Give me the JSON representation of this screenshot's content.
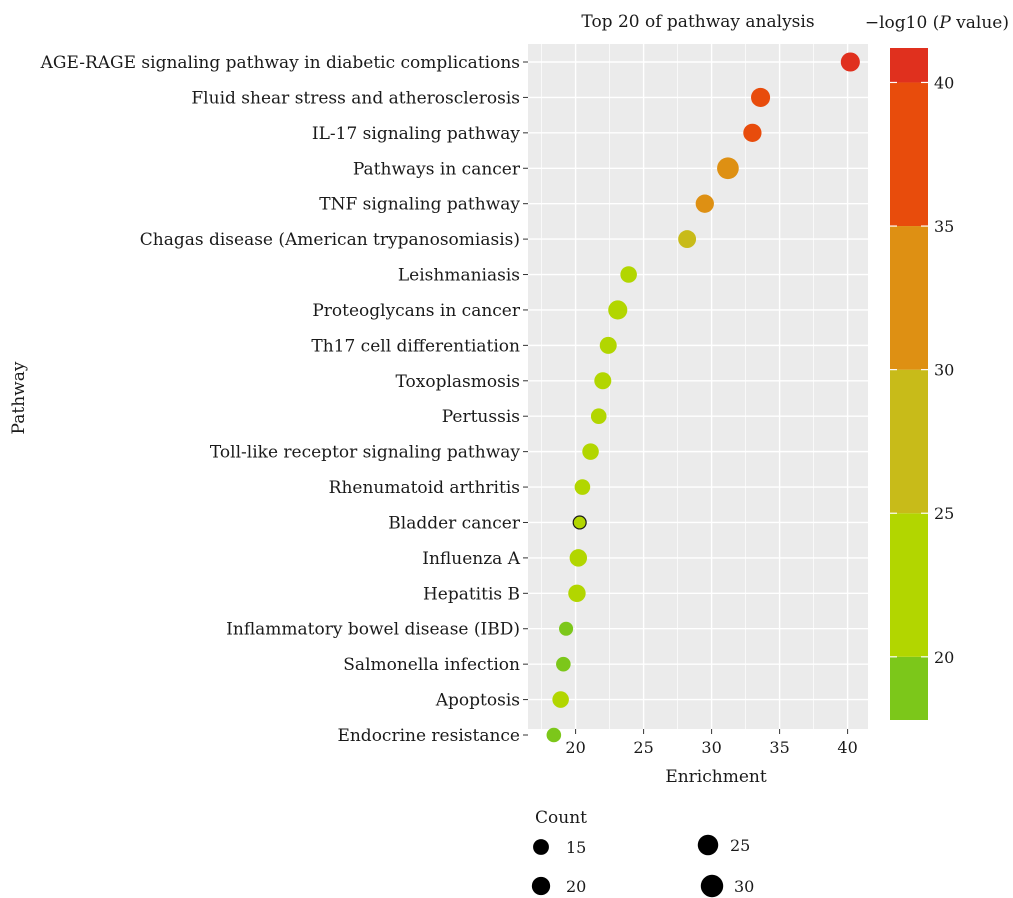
{
  "chart_data": {
    "type": "scatter",
    "title": "Top 20 of pathway analysis",
    "xlabel": "Enrichment",
    "ylabel": "Pathway",
    "xlim": [
      16.5,
      41.5
    ],
    "x_ticks": [
      20,
      25,
      30,
      35,
      40
    ],
    "grid": true,
    "categories": [
      "AGE-RAGE signaling pathway in diabetic complications",
      "Fluid shear stress and atherosclerosis",
      "IL-17 signaling pathway",
      "Pathways in cancer",
      "TNF signaling pathway",
      "Chagas disease (American trypanosomiasis)",
      "Leishmaniasis",
      "Proteoglycans in cancer",
      "Th17 cell differentiation",
      "Toxoplasmosis",
      "Pertussis",
      "Toll-like receptor signaling pathway",
      "Rhenumatoid arthritis",
      "Bladder cancer",
      "Influenza A",
      "Hepatitis B",
      "Inflammatory bowel disease (IBD)",
      "Salmonella infection",
      "Apoptosis",
      "Endocrine resistance"
    ],
    "points": [
      {
        "enrichment": 40.2,
        "count": 24,
        "neg_log10_p": 40.8
      },
      {
        "enrichment": 33.6,
        "count": 24,
        "neg_log10_p": 37.5
      },
      {
        "enrichment": 33.0,
        "count": 22,
        "neg_log10_p": 35.5
      },
      {
        "enrichment": 31.2,
        "count": 31,
        "neg_log10_p": 33.0
      },
      {
        "enrichment": 29.5,
        "count": 22,
        "neg_log10_p": 31.5
      },
      {
        "enrichment": 28.2,
        "count": 21,
        "neg_log10_p": 29.5
      },
      {
        "enrichment": 23.9,
        "count": 18,
        "neg_log10_p": 23.0
      },
      {
        "enrichment": 23.1,
        "count": 24,
        "neg_log10_p": 24.0
      },
      {
        "enrichment": 22.4,
        "count": 19,
        "neg_log10_p": 23.5
      },
      {
        "enrichment": 22.0,
        "count": 19,
        "neg_log10_p": 23.0
      },
      {
        "enrichment": 21.7,
        "count": 16,
        "neg_log10_p": 22.0
      },
      {
        "enrichment": 21.1,
        "count": 18,
        "neg_log10_p": 22.5
      },
      {
        "enrichment": 20.5,
        "count": 16,
        "neg_log10_p": 21.5
      },
      {
        "enrichment": 20.3,
        "count": 11,
        "neg_log10_p": 20.5
      },
      {
        "enrichment": 20.2,
        "count": 20,
        "neg_log10_p": 22.0
      },
      {
        "enrichment": 20.1,
        "count": 20,
        "neg_log10_p": 21.5
      },
      {
        "enrichment": 19.3,
        "count": 13,
        "neg_log10_p": 20.0
      },
      {
        "enrichment": 19.1,
        "count": 14,
        "neg_log10_p": 20.0
      },
      {
        "enrichment": 18.9,
        "count": 18,
        "neg_log10_p": 20.5
      },
      {
        "enrichment": 18.4,
        "count": 14,
        "neg_log10_p": 19.0
      }
    ],
    "color_legend": {
      "title": "−log10 (P value)",
      "range": [
        17.8,
        41.2
      ],
      "ticks": [
        20,
        25,
        30,
        35,
        40
      ],
      "bands": [
        {
          "from": 17.8,
          "to": 20.0,
          "color": "#7cc71a"
        },
        {
          "from": 20.0,
          "to": 25.0,
          "color": "#b2d600"
        },
        {
          "from": 25.0,
          "to": 30.0,
          "color": "#c8bb19"
        },
        {
          "from": 30.0,
          "to": 35.0,
          "color": "#de9013"
        },
        {
          "from": 35.0,
          "to": 40.0,
          "color": "#e84c0c"
        },
        {
          "from": 40.0,
          "to": 41.2,
          "color": "#e0301e"
        }
      ]
    },
    "size_legend": {
      "title": "Count",
      "values": [
        15,
        20,
        25,
        30
      ]
    },
    "colors": {
      "panel": "#ebebeb",
      "grid": "#ffffff",
      "text": "#1a1a1a"
    }
  }
}
